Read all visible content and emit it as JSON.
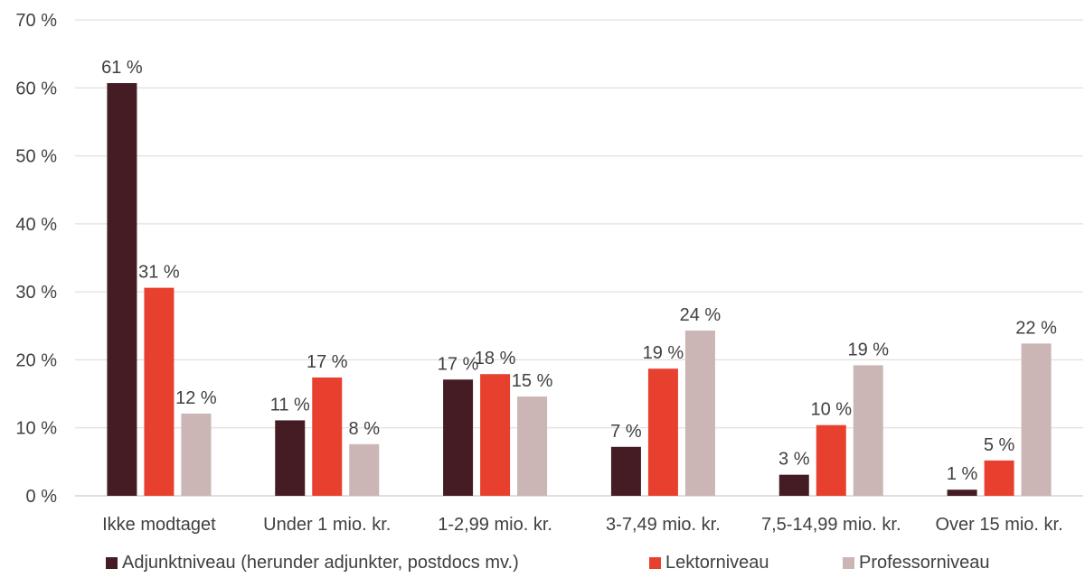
{
  "chart_data": {
    "type": "bar",
    "title": "",
    "xlabel": "",
    "ylabel": "",
    "ylim": [
      0,
      70
    ],
    "yticks": [
      0,
      10,
      20,
      30,
      40,
      50,
      60,
      70
    ],
    "ytick_labels": [
      "0 %",
      "10 %",
      "20 %",
      "30 %",
      "40 %",
      "50 %",
      "60 %",
      "70 %"
    ],
    "grid": true,
    "legend_position": "bottom",
    "categories": [
      "Ikke modtaget",
      "Under 1 mio. kr.",
      "1-2,99 mio. kr.",
      "3-7,49 mio. kr.",
      "7,5-14,99 mio. kr.",
      "Over 15 mio. kr."
    ],
    "series": [
      {
        "name": "Adjunktniveau (herunder adjunkter, postdocs mv.)",
        "color": "#451b24",
        "values": [
          60.7,
          11.1,
          17.1,
          7.2,
          3.1,
          0.9
        ],
        "labels": [
          "61 %",
          "11 %",
          "17 %",
          "7 %",
          "3 %",
          "1 %"
        ]
      },
      {
        "name": "Lektorniveau",
        "color": "#e8402f",
        "values": [
          30.6,
          17.4,
          17.9,
          18.7,
          10.4,
          5.2
        ],
        "labels": [
          "31 %",
          "17 %",
          "18 %",
          "19 %",
          "10 %",
          "5 %"
        ]
      },
      {
        "name": "Professorniveau",
        "color": "#cbb5b5",
        "values": [
          12.1,
          7.6,
          14.6,
          24.3,
          19.2,
          22.4
        ],
        "labels": [
          "12 %",
          "8 %",
          "15 %",
          "24 %",
          "19 %",
          "22 %"
        ]
      }
    ]
  }
}
